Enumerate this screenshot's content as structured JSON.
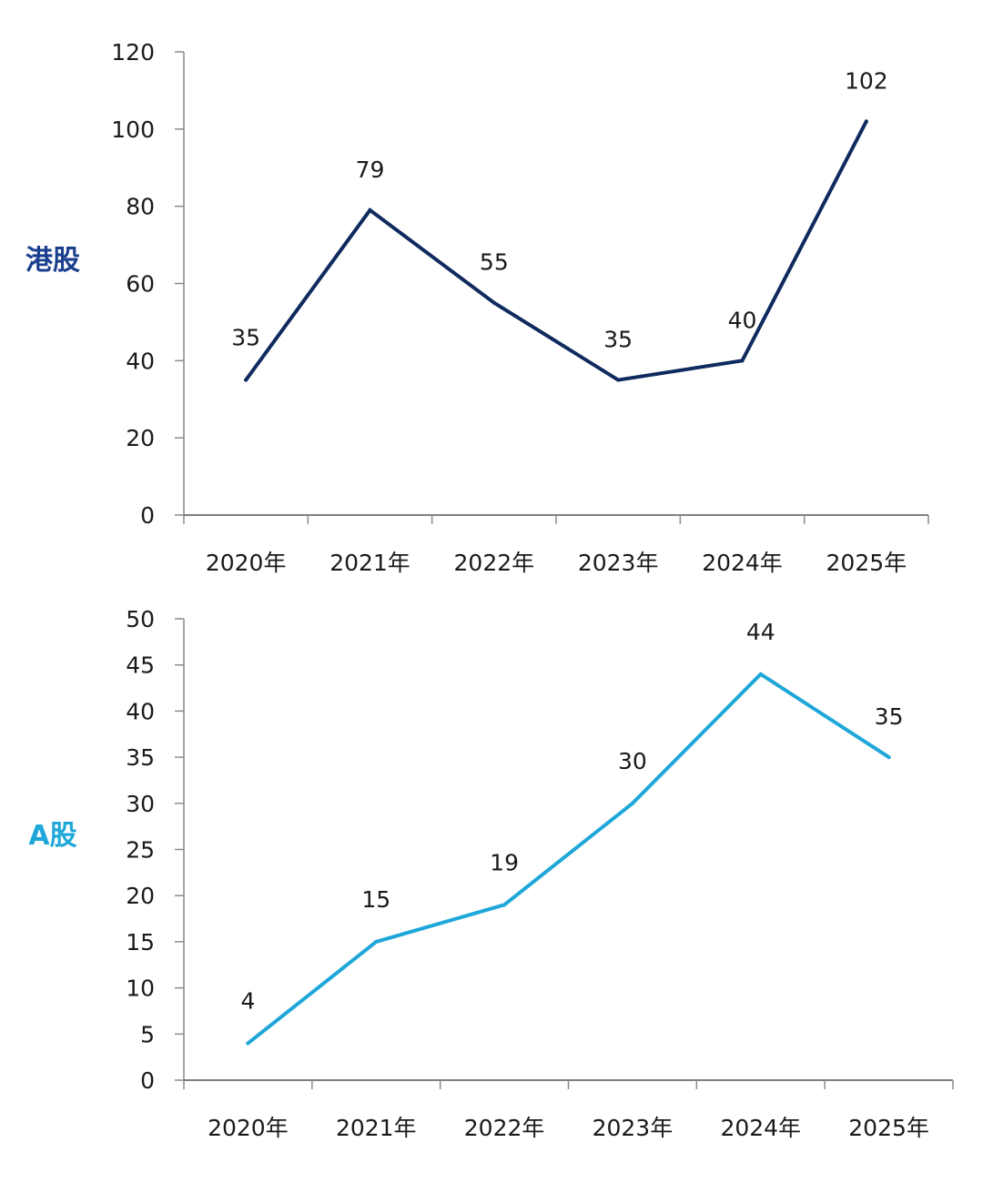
{
  "chart_data": [
    {
      "type": "line",
      "title": "",
      "series_label": "港股",
      "categories": [
        "2020年",
        "2021年",
        "2022年",
        "2023年",
        "2024年",
        "2025年"
      ],
      "series": [
        {
          "name": "港股",
          "values": [
            35,
            79,
            55,
            35,
            40,
            102
          ]
        }
      ],
      "data_labels": [
        "35",
        "79",
        "55",
        "35",
        "40",
        "102"
      ],
      "ylim": [
        0,
        120
      ],
      "yticks": [
        0,
        20,
        40,
        60,
        80,
        100,
        120
      ],
      "ytick_labels": [
        "0",
        "20",
        "40",
        "60",
        "80",
        "100",
        "120"
      ],
      "xlabel": "",
      "ylabel": "",
      "grid": false,
      "color": "#0f2a5e",
      "title_color": "#1b3f8f"
    },
    {
      "type": "line",
      "title": "",
      "series_label": "A股",
      "categories": [
        "2020年",
        "2021年",
        "2022年",
        "2023年",
        "2024年",
        "2025年"
      ],
      "series": [
        {
          "name": "A股",
          "values": [
            4,
            15,
            19,
            30,
            44,
            35
          ]
        }
      ],
      "data_labels": [
        "4",
        "15",
        "19",
        "30",
        "44",
        "35"
      ],
      "ylim": [
        0,
        50
      ],
      "yticks": [
        0,
        5,
        10,
        15,
        20,
        25,
        30,
        35,
        40,
        45,
        50
      ],
      "ytick_labels": [
        "0",
        "5",
        "10",
        "15",
        "20",
        "25",
        "30",
        "35",
        "40",
        "45",
        "50"
      ],
      "xlabel": "",
      "ylabel": "",
      "grid": false,
      "color": "#1ea7d8",
      "title_color": "#1ea7d8"
    }
  ]
}
